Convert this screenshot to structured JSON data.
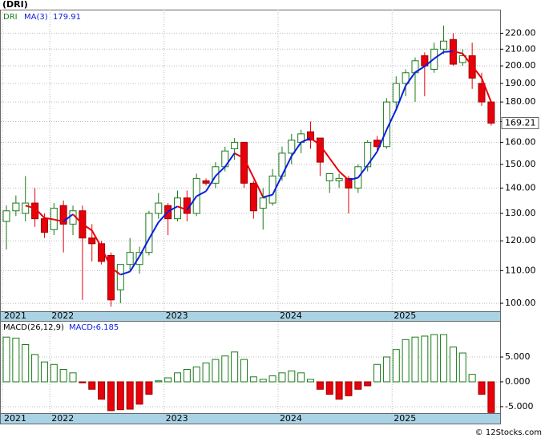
{
  "title": "(DRI)",
  "credit": "© 12Stocks.com",
  "chart_data": [
    {
      "type": "candlestick",
      "symbol": "DRI",
      "log_scale": true,
      "grid": true,
      "categories": [
        "2021",
        null,
        null,
        null,
        null,
        "2022",
        null,
        null,
        null,
        null,
        null,
        null,
        null,
        null,
        null,
        null,
        null,
        "2023",
        null,
        null,
        null,
        null,
        null,
        null,
        null,
        null,
        null,
        null,
        null,
        "2024",
        null,
        null,
        null,
        null,
        null,
        null,
        null,
        null,
        null,
        null,
        null,
        "2025",
        null,
        null,
        null,
        null,
        null,
        null,
        null,
        null,
        null,
        null
      ],
      "open": [
        127,
        131,
        130,
        134,
        128,
        124,
        133,
        126,
        131,
        121,
        119,
        115,
        104,
        112,
        112,
        116,
        130,
        133,
        128,
        136,
        130,
        143,
        142,
        149,
        157,
        160,
        142,
        132,
        134,
        145,
        155,
        160,
        165,
        162,
        143,
        143,
        144,
        140,
        149,
        161,
        158,
        180,
        190,
        196,
        206,
        198,
        210,
        216,
        202,
        206,
        190,
        180
      ],
      "high": [
        133,
        137,
        145,
        140,
        130,
        134,
        135,
        133,
        133,
        126,
        120,
        116,
        112,
        121,
        118,
        131,
        138,
        134,
        139,
        139,
        146,
        144,
        151,
        158,
        162,
        160,
        143,
        140,
        148,
        158,
        164,
        166,
        170,
        162,
        146,
        146,
        145,
        150,
        161,
        163,
        182,
        194,
        198,
        205,
        208,
        214,
        225,
        220,
        210,
        214,
        196,
        180
      ],
      "low": [
        117,
        129,
        127,
        125,
        121,
        122,
        116,
        122,
        101,
        113,
        112,
        99,
        100,
        110,
        109,
        115,
        128,
        122,
        127,
        127,
        129,
        141,
        140,
        147,
        152,
        140,
        128,
        124,
        133,
        143,
        150,
        155,
        157,
        145,
        138,
        140,
        130,
        138,
        147,
        156,
        157,
        176,
        183,
        180,
        183,
        196,
        207,
        200,
        200,
        187,
        178,
        168
      ],
      "close": [
        131,
        134,
        134,
        128,
        123,
        132,
        126,
        131,
        121,
        119,
        113,
        101,
        112,
        116,
        116,
        130,
        134,
        128,
        136,
        130,
        144,
        142,
        149,
        156,
        160,
        142,
        131,
        136,
        145,
        155,
        161,
        164,
        161,
        151,
        146,
        144,
        140,
        149,
        160,
        158,
        180,
        190,
        196,
        203,
        200,
        210,
        215,
        201,
        206,
        193,
        180,
        169.21
      ],
      "up_color": "#1a7a1a",
      "down_color": "#e8000b",
      "ma": {
        "name": "MA(3)",
        "up_color": "#0a1ee0",
        "down_color": "#e8000b",
        "values": [
          null,
          null,
          133,
          132,
          128.3,
          127.7,
          127,
          129.7,
          126,
          123.7,
          117.7,
          111,
          108.7,
          109.7,
          114.7,
          120.7,
          126.7,
          130.7,
          132.7,
          131.3,
          136.7,
          138.7,
          145,
          149,
          155,
          152.7,
          144.3,
          136.3,
          137.3,
          145.3,
          153.7,
          160,
          162,
          158.7,
          152.7,
          147,
          143.3,
          144.3,
          149.7,
          155.7,
          166,
          176,
          188.7,
          196.3,
          199.7,
          204.3,
          208.3,
          208.7,
          207.3,
          200,
          193,
          179.91
        ]
      },
      "ylim": [
        97.7,
        235.7
      ],
      "yticks": [
        {
          "value": 100,
          "label": "100.00"
        },
        {
          "value": 110,
          "label": "110.00"
        },
        {
          "value": 120,
          "label": "120.00"
        },
        {
          "value": 130,
          "label": "130.00"
        },
        {
          "value": 140,
          "label": "140.00"
        },
        {
          "value": 150,
          "label": "150.00"
        },
        {
          "value": 160,
          "label": "160.00"
        },
        {
          "value": 170,
          "label": "170.00"
        },
        {
          "value": 180,
          "label": "180.00"
        },
        {
          "value": 190,
          "label": "190.00"
        },
        {
          "value": 200,
          "label": "200.00"
        },
        {
          "value": 210,
          "label": "210.00"
        },
        {
          "value": 220,
          "label": "220.00"
        }
      ]
    },
    {
      "type": "bar",
      "name": "MACD(26,12,9)",
      "value_name": "MACD:",
      "grid": true,
      "categories": [
        "2021",
        null,
        null,
        null,
        null,
        "2022",
        null,
        null,
        null,
        null,
        null,
        null,
        null,
        null,
        null,
        null,
        null,
        "2023",
        null,
        null,
        null,
        null,
        null,
        null,
        null,
        null,
        null,
        null,
        null,
        "2024",
        null,
        null,
        null,
        null,
        null,
        null,
        null,
        null,
        null,
        null,
        null,
        "2025",
        null,
        null,
        null,
        null,
        null,
        null,
        null,
        null,
        null,
        null
      ],
      "values": [
        9.0,
        8.8,
        7.5,
        5.5,
        4.0,
        3.5,
        2.5,
        1.8,
        -0.2,
        -1.5,
        -3.5,
        -5.8,
        -5.6,
        -5.5,
        -4.5,
        -2.5,
        0.2,
        0.8,
        1.8,
        2.5,
        3.0,
        3.8,
        4.5,
        5.2,
        6.0,
        4.5,
        1.0,
        0.5,
        1.2,
        1.8,
        2.2,
        1.8,
        0.5,
        -1.5,
        -2.5,
        -3.5,
        -2.8,
        -1.5,
        -0.8,
        3.5,
        5.0,
        6.5,
        8.5,
        9.0,
        9.2,
        9.5,
        9.5,
        7.0,
        5.8,
        1.5,
        -2.5,
        -6.185
      ],
      "pos_color": "#1a7a1a",
      "neg_color": "#e8000b",
      "ylim": [
        -6.3,
        12.1
      ],
      "yticks": [
        {
          "value": -5,
          "label": "-5.000"
        },
        {
          "value": 0,
          "label": "0.000"
        },
        {
          "value": 5,
          "label": "5.000"
        }
      ]
    }
  ]
}
